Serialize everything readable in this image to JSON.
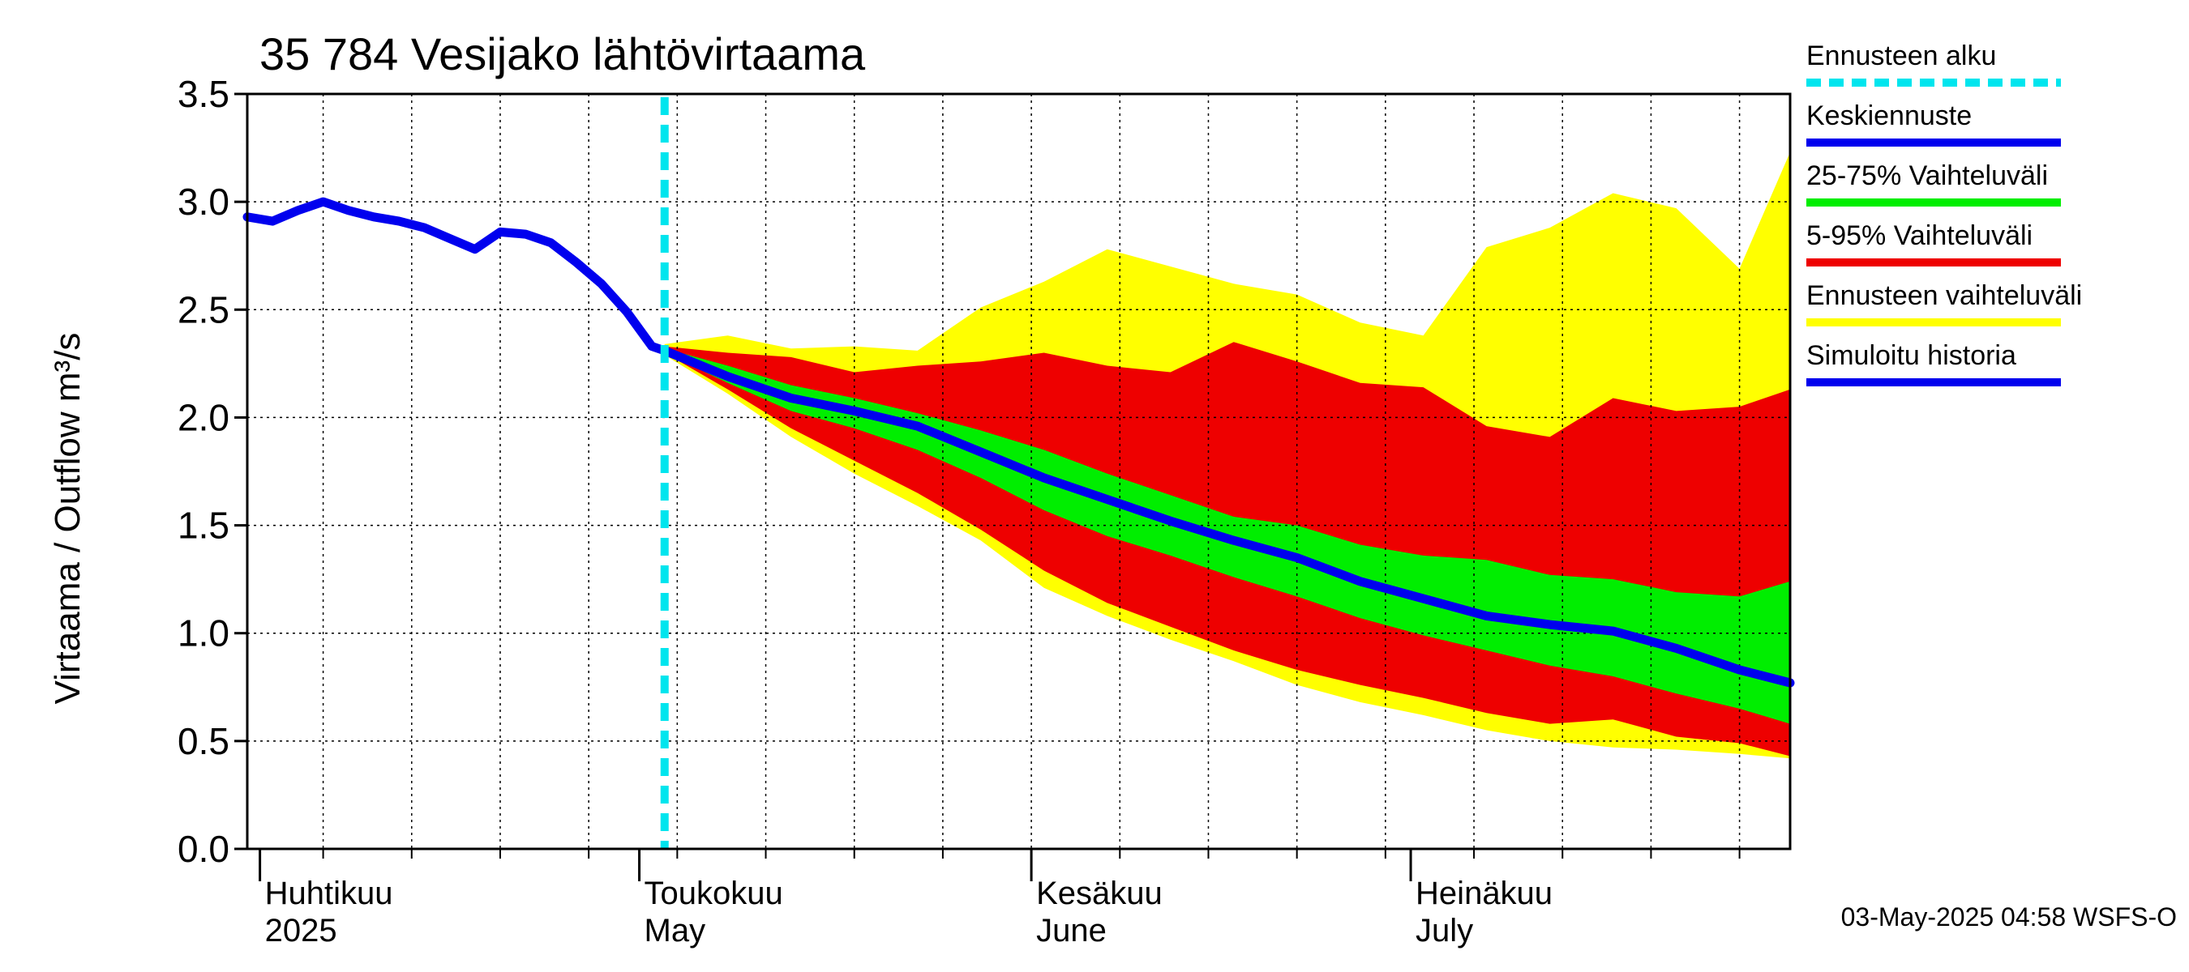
{
  "chart_data": {
    "type": "area",
    "title": "35 784 Vesijako lähtövirtaama",
    "ylabel": "Virtaama / Outflow    m³/s",
    "ylim": [
      0,
      3.5
    ],
    "y_ticks": [
      "0.0",
      "0.5",
      "1.0",
      "1.5",
      "2.0",
      "2.5",
      "3.0",
      "3.5"
    ],
    "x_range": [
      "2025-03-31",
      "2025-07-31"
    ],
    "month_labels": [
      {
        "date": "2025-04-01",
        "fi": "Huhtikuu",
        "en": "2025"
      },
      {
        "date": "2025-05-01",
        "fi": "Toukokuu",
        "en": "May"
      },
      {
        "date": "2025-06-01",
        "fi": "Kesäkuu",
        "en": "June"
      },
      {
        "date": "2025-07-01",
        "fi": "Heinäkuu",
        "en": "July"
      }
    ],
    "forecast_start": "2025-05-03",
    "grid": true,
    "legend_position": "right",
    "legend": [
      {
        "label": "Ennusteen alku",
        "color": "#00e5ee",
        "style": "dashed"
      },
      {
        "label": "Keskiennuste",
        "color": "#0000ee",
        "style": "solid"
      },
      {
        "label": "25-75% Vaihteluväli",
        "color": "#00ee00",
        "style": "solid"
      },
      {
        "label": "5-95% Vaihteluväli",
        "color": "#ee0000",
        "style": "solid"
      },
      {
        "label": "Ennusteen vaihteluväli",
        "color": "#ffff00",
        "style": "solid"
      },
      {
        "label": "Simuloitu historia",
        "color": "#0000ee",
        "style": "solid"
      }
    ],
    "series": [
      {
        "name": "Simuloitu historia",
        "x": [
          "2025-03-31",
          "2025-04-02",
          "2025-04-04",
          "2025-04-06",
          "2025-04-08",
          "2025-04-10",
          "2025-04-12",
          "2025-04-14",
          "2025-04-16",
          "2025-04-18",
          "2025-04-20",
          "2025-04-22",
          "2025-04-24",
          "2025-04-26",
          "2025-04-28",
          "2025-04-30",
          "2025-05-02",
          "2025-05-03"
        ],
        "values": [
          2.93,
          2.91,
          2.96,
          3.0,
          2.96,
          2.93,
          2.91,
          2.88,
          2.83,
          2.78,
          2.86,
          2.85,
          2.81,
          2.72,
          2.62,
          2.49,
          2.33,
          2.31
        ]
      },
      {
        "name": "Keskiennuste",
        "x": [
          "2025-05-03",
          "2025-05-08",
          "2025-05-13",
          "2025-05-18",
          "2025-05-23",
          "2025-05-28",
          "2025-06-02",
          "2025-06-07",
          "2025-06-12",
          "2025-06-17",
          "2025-06-22",
          "2025-06-27",
          "2025-07-02",
          "2025-07-07",
          "2025-07-12",
          "2025-07-17",
          "2025-07-22",
          "2025-07-27",
          "2025-07-31"
        ],
        "values": [
          2.31,
          2.19,
          2.09,
          2.03,
          1.96,
          1.84,
          1.72,
          1.62,
          1.52,
          1.43,
          1.35,
          1.24,
          1.16,
          1.08,
          1.04,
          1.01,
          0.93,
          0.83,
          0.77
        ]
      }
    ],
    "bands": [
      {
        "name": "Ennusteen vaihteluväli",
        "x": [
          "2025-05-03",
          "2025-05-08",
          "2025-05-13",
          "2025-05-18",
          "2025-05-23",
          "2025-05-28",
          "2025-06-02",
          "2025-06-07",
          "2025-06-12",
          "2025-06-17",
          "2025-06-22",
          "2025-06-27",
          "2025-07-02",
          "2025-07-07",
          "2025-07-12",
          "2025-07-17",
          "2025-07-22",
          "2025-07-27",
          "2025-07-31"
        ],
        "upper": [
          2.34,
          2.38,
          2.32,
          2.33,
          2.31,
          2.51,
          2.63,
          2.78,
          2.7,
          2.62,
          2.57,
          2.44,
          2.38,
          2.79,
          2.88,
          3.04,
          2.97,
          2.69,
          3.23
        ],
        "lower": [
          2.29,
          2.11,
          1.91,
          1.74,
          1.59,
          1.43,
          1.21,
          1.08,
          0.97,
          0.87,
          0.76,
          0.68,
          0.62,
          0.55,
          0.5,
          0.47,
          0.46,
          0.44,
          0.42
        ]
      },
      {
        "name": "5-95% Vaihteluväli",
        "x": [
          "2025-05-03",
          "2025-05-08",
          "2025-05-13",
          "2025-05-18",
          "2025-05-23",
          "2025-05-28",
          "2025-06-02",
          "2025-06-07",
          "2025-06-12",
          "2025-06-17",
          "2025-06-22",
          "2025-06-27",
          "2025-07-02",
          "2025-07-07",
          "2025-07-12",
          "2025-07-17",
          "2025-07-22",
          "2025-07-27",
          "2025-07-31"
        ],
        "upper": [
          2.33,
          2.3,
          2.28,
          2.21,
          2.24,
          2.26,
          2.3,
          2.24,
          2.21,
          2.35,
          2.26,
          2.16,
          2.14,
          1.96,
          1.91,
          2.09,
          2.03,
          2.05,
          2.13
        ],
        "lower": [
          2.3,
          2.13,
          1.95,
          1.8,
          1.65,
          1.48,
          1.29,
          1.14,
          1.03,
          0.92,
          0.83,
          0.76,
          0.7,
          0.63,
          0.58,
          0.6,
          0.52,
          0.49,
          0.43
        ]
      },
      {
        "name": "25-75% Vaihteluväli",
        "x": [
          "2025-05-03",
          "2025-05-08",
          "2025-05-13",
          "2025-05-18",
          "2025-05-23",
          "2025-05-28",
          "2025-06-02",
          "2025-06-07",
          "2025-06-12",
          "2025-06-17",
          "2025-06-22",
          "2025-06-27",
          "2025-07-02",
          "2025-07-07",
          "2025-07-12",
          "2025-07-17",
          "2025-07-22",
          "2025-07-27",
          "2025-07-31"
        ],
        "upper": [
          2.32,
          2.24,
          2.15,
          2.09,
          2.02,
          1.94,
          1.85,
          1.74,
          1.64,
          1.54,
          1.5,
          1.41,
          1.36,
          1.34,
          1.27,
          1.25,
          1.19,
          1.17,
          1.24
        ],
        "lower": [
          2.3,
          2.16,
          2.03,
          1.95,
          1.85,
          1.72,
          1.57,
          1.45,
          1.36,
          1.26,
          1.17,
          1.07,
          0.99,
          0.92,
          0.85,
          0.8,
          0.72,
          0.65,
          0.58
        ]
      }
    ]
  },
  "footer": "03-May-2025 04:58 WSFS-O"
}
